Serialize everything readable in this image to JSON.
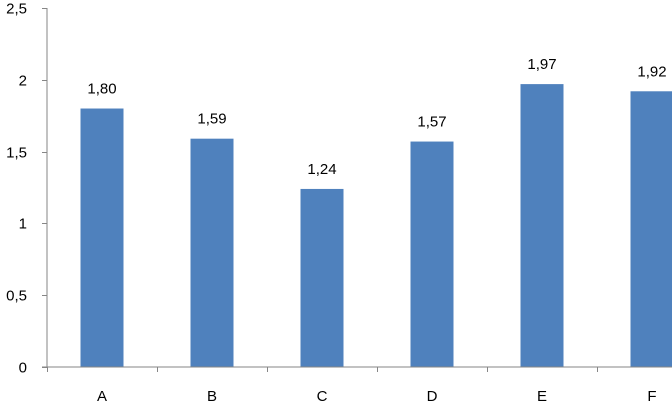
{
  "chart_data": {
    "type": "bar",
    "categories": [
      "A",
      "B",
      "C",
      "D",
      "E",
      "F"
    ],
    "values": [
      1.8,
      1.59,
      1.24,
      1.57,
      1.97,
      1.92
    ],
    "data_labels": [
      "1,80",
      "1,59",
      "1,24",
      "1,57",
      "1,97",
      "1,92"
    ],
    "yticks": [
      0,
      0.5,
      1,
      1.5,
      2,
      2.5
    ],
    "ytick_labels": [
      "0",
      "0,5",
      "1",
      "1,5",
      "2",
      "2,5"
    ],
    "ylim": [
      0,
      2.5
    ],
    "grid": false,
    "legend": "none",
    "title": "",
    "xlabel": "",
    "ylabel": "",
    "colors": {
      "bar": "#4f81bd",
      "axis": "#868686"
    }
  }
}
